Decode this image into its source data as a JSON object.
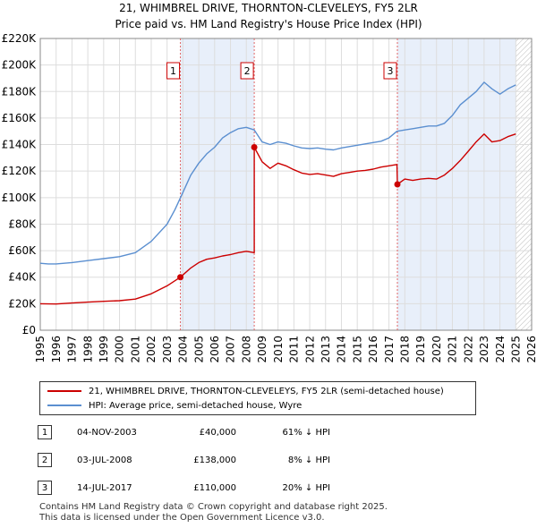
{
  "title_line1": "21, WHIMBREL DRIVE, THORNTON-CLEVELEYS, FY5 2LR",
  "title_line2": "Price paid vs. HM Land Registry's House Price Index (HPI)",
  "chart_data": {
    "type": "line",
    "title": "21, WHIMBREL DRIVE, THORNTON-CLEVELEYS, FY5 2LR",
    "subtitle": "Price paid vs. HM Land Registry's House Price Index (HPI)",
    "xlabel": "",
    "ylabel": "",
    "xlim": [
      1995,
      2026
    ],
    "ylim": [
      0,
      220000
    ],
    "y_ticks": [
      0,
      20000,
      40000,
      60000,
      80000,
      100000,
      120000,
      140000,
      160000,
      180000,
      200000,
      220000
    ],
    "y_tick_labels": [
      "£0",
      "£20K",
      "£40K",
      "£60K",
      "£80K",
      "£100K",
      "£120K",
      "£140K",
      "£160K",
      "£180K",
      "£200K",
      "£220K"
    ],
    "x_ticks": [
      1995,
      1996,
      1997,
      1998,
      1999,
      2000,
      2001,
      2002,
      2003,
      2004,
      2005,
      2006,
      2007,
      2008,
      2009,
      2010,
      2011,
      2012,
      2013,
      2014,
      2015,
      2016,
      2017,
      2018,
      2019,
      2020,
      2021,
      2022,
      2023,
      2024,
      2025,
      2026
    ],
    "x_tick_labels": [
      "1995",
      "1996",
      "1997",
      "1998",
      "1999",
      "2000",
      "2001",
      "2002",
      "2003",
      "2004",
      "2005",
      "2006",
      "2007",
      "2008",
      "2009",
      "2010",
      "2011",
      "2012",
      "2013",
      "2014",
      "2015",
      "2016",
      "2017",
      "2018",
      "2019",
      "2020",
      "2021",
      "2022",
      "2023",
      "2024",
      "2025",
      "2026"
    ],
    "grid": true,
    "series": [
      {
        "name": "21, WHIMBREL DRIVE, THORNTON-CLEVELEYS, FY5 2LR (semi-detached house)",
        "color": "#cc0000",
        "points": [
          [
            1995.0,
            20000
          ],
          [
            1996.0,
            19800
          ],
          [
            1997.0,
            20500
          ],
          [
            1998.0,
            21200
          ],
          [
            1999.0,
            21800
          ],
          [
            2000.0,
            22300
          ],
          [
            2001.0,
            23500
          ],
          [
            2002.0,
            27500
          ],
          [
            2003.0,
            33500
          ],
          [
            2003.84,
            40000
          ],
          [
            2004.5,
            47000
          ],
          [
            2005.0,
            51000
          ],
          [
            2005.5,
            53500
          ],
          [
            2006.0,
            54500
          ],
          [
            2006.5,
            56000
          ],
          [
            2007.0,
            57000
          ],
          [
            2007.5,
            58500
          ],
          [
            2008.0,
            59500
          ],
          [
            2008.5,
            58500
          ],
          [
            2008.5,
            138000
          ],
          [
            2009.0,
            127000
          ],
          [
            2009.5,
            122000
          ],
          [
            2010.0,
            126000
          ],
          [
            2010.5,
            124000
          ],
          [
            2011.0,
            121000
          ],
          [
            2011.5,
            118500
          ],
          [
            2012.0,
            117500
          ],
          [
            2012.5,
            118000
          ],
          [
            2013.0,
            117000
          ],
          [
            2013.5,
            116000
          ],
          [
            2014.0,
            118000
          ],
          [
            2014.5,
            119000
          ],
          [
            2015.0,
            120000
          ],
          [
            2015.5,
            120500
          ],
          [
            2016.0,
            121500
          ],
          [
            2016.5,
            123000
          ],
          [
            2017.0,
            124000
          ],
          [
            2017.5,
            125000
          ],
          [
            2017.53,
            110000
          ],
          [
            2018.0,
            114000
          ],
          [
            2018.5,
            113000
          ],
          [
            2019.0,
            114000
          ],
          [
            2019.5,
            114500
          ],
          [
            2020.0,
            114000
          ],
          [
            2020.5,
            117000
          ],
          [
            2021.0,
            122000
          ],
          [
            2021.5,
            128000
          ],
          [
            2022.0,
            135000
          ],
          [
            2022.5,
            142000
          ],
          [
            2023.0,
            148000
          ],
          [
            2023.5,
            142000
          ],
          [
            2024.0,
            143000
          ],
          [
            2024.5,
            146000
          ],
          [
            2025.0,
            148000
          ]
        ]
      },
      {
        "name": "HPI: Average price, semi-detached house, Wyre",
        "color": "#5b8fd0",
        "points": [
          [
            1995.0,
            50500
          ],
          [
            1995.5,
            50000
          ],
          [
            1996.0,
            50000
          ],
          [
            1997.0,
            51000
          ],
          [
            1998.0,
            52500
          ],
          [
            1999.0,
            54000
          ],
          [
            2000.0,
            55500
          ],
          [
            2001.0,
            58500
          ],
          [
            2002.0,
            67000
          ],
          [
            2003.0,
            80000
          ],
          [
            2003.5,
            91000
          ],
          [
            2004.0,
            104000
          ],
          [
            2004.5,
            117000
          ],
          [
            2005.0,
            126000
          ],
          [
            2005.5,
            133000
          ],
          [
            2006.0,
            138000
          ],
          [
            2006.5,
            145000
          ],
          [
            2007.0,
            149000
          ],
          [
            2007.5,
            152000
          ],
          [
            2008.0,
            153000
          ],
          [
            2008.5,
            151000
          ],
          [
            2009.0,
            142000
          ],
          [
            2009.5,
            140000
          ],
          [
            2010.0,
            142000
          ],
          [
            2010.5,
            141000
          ],
          [
            2011.0,
            139000
          ],
          [
            2011.5,
            137500
          ],
          [
            2012.0,
            137000
          ],
          [
            2012.5,
            137500
          ],
          [
            2013.0,
            136500
          ],
          [
            2013.5,
            136000
          ],
          [
            2014.0,
            137500
          ],
          [
            2014.5,
            138500
          ],
          [
            2015.0,
            139500
          ],
          [
            2015.5,
            140500
          ],
          [
            2016.0,
            141500
          ],
          [
            2016.5,
            142500
          ],
          [
            2017.0,
            145000
          ],
          [
            2017.5,
            150000
          ],
          [
            2018.0,
            151000
          ],
          [
            2018.5,
            152000
          ],
          [
            2019.0,
            153000
          ],
          [
            2019.5,
            154000
          ],
          [
            2020.0,
            154000
          ],
          [
            2020.5,
            156000
          ],
          [
            2021.0,
            162000
          ],
          [
            2021.5,
            170000
          ],
          [
            2022.0,
            175000
          ],
          [
            2022.5,
            180000
          ],
          [
            2023.0,
            187000
          ],
          [
            2023.5,
            182000
          ],
          [
            2024.0,
            178000
          ],
          [
            2024.5,
            182000
          ],
          [
            2025.0,
            185000
          ]
        ]
      }
    ],
    "markers": [
      {
        "label": "1",
        "x": 2003.84,
        "y": 40000
      },
      {
        "label": "2",
        "x": 2008.5,
        "y": 138000
      },
      {
        "label": "3",
        "x": 2017.53,
        "y": 110000
      }
    ],
    "shaded_ranges": [
      [
        2003.84,
        2008.5
      ],
      [
        2017.53,
        2025.0
      ]
    ],
    "hatched_range": [
      2025.0,
      2026.0
    ]
  },
  "legend": {
    "property_label": "21, WHIMBREL DRIVE, THORNTON-CLEVELEYS, FY5 2LR (semi-detached house)",
    "hpi_label": "HPI: Average price, semi-detached house, Wyre",
    "property_color": "#cc0000",
    "hpi_color": "#5b8fd0"
  },
  "sales": [
    {
      "num": "1",
      "date": "04-NOV-2003",
      "price": "£40,000",
      "hpi": "61% ↓ HPI"
    },
    {
      "num": "2",
      "date": "03-JUL-2008",
      "price": "£138,000",
      "hpi": "8% ↓ HPI"
    },
    {
      "num": "3",
      "date": "14-JUL-2017",
      "price": "£110,000",
      "hpi": "20% ↓ HPI"
    }
  ],
  "footer_line1": "Contains HM Land Registry data © Crown copyright and database right 2025.",
  "footer_line2": "This data is licensed under the Open Government Licence v3.0."
}
